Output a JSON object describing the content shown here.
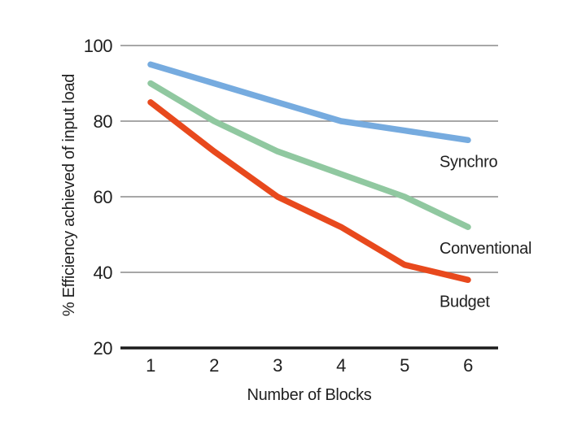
{
  "chart_data": {
    "type": "line",
    "title": "",
    "xlabel": "Number of Blocks",
    "ylabel": "% Efficiency achieved of input load",
    "x": [
      1,
      2,
      3,
      4,
      5,
      6
    ],
    "xticks": [
      1,
      2,
      3,
      4,
      5,
      6
    ],
    "xlim": [
      1,
      6
    ],
    "ylim": [
      20,
      100
    ],
    "yticks": [
      20,
      40,
      60,
      80,
      100
    ],
    "grid": "horizontal-gray-lines",
    "legend_position": "inline-labels-right-of-line-ends",
    "series": [
      {
        "name": "Synchro",
        "color": "#76ABDF",
        "values": [
          95,
          90,
          85,
          80,
          77.5,
          75
        ]
      },
      {
        "name": "Conventional",
        "color": "#90C8A0",
        "values": [
          90,
          80,
          72,
          66,
          60,
          52
        ]
      },
      {
        "name": "Budget",
        "color": "#E8491D",
        "values": [
          85,
          72,
          60,
          52,
          42,
          38
        ]
      }
    ],
    "colors": {
      "gridline": "#8A8A8A",
      "axis": "#1C1C1C",
      "text": "#1F1F1F",
      "background": "#FFFFFF"
    }
  }
}
